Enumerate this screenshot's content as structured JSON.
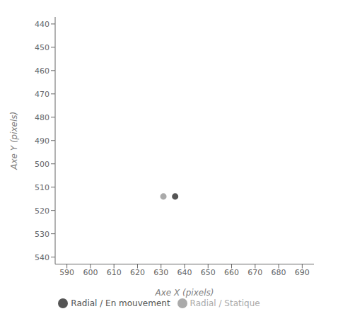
{
  "chart_data": {
    "type": "scatter",
    "xlabel": "Axe X (pixels)",
    "ylabel": "Axe Y (pixels)",
    "xlim": [
      585,
      695
    ],
    "ylim": [
      543,
      437
    ],
    "xticks": [
      590,
      600,
      610,
      620,
      630,
      640,
      650,
      660,
      670,
      680,
      690
    ],
    "yticks": [
      440,
      450,
      460,
      470,
      480,
      490,
      500,
      510,
      520,
      530,
      540
    ],
    "legend": "bottom",
    "series": [
      {
        "name": "Radial / Statique",
        "color": "#aaaaaa",
        "x": [
          631
        ],
        "y": [
          514
        ]
      },
      {
        "name": "Radial / En mouvement",
        "color": "#555555",
        "x": [
          636
        ],
        "y": [
          514
        ]
      }
    ]
  }
}
